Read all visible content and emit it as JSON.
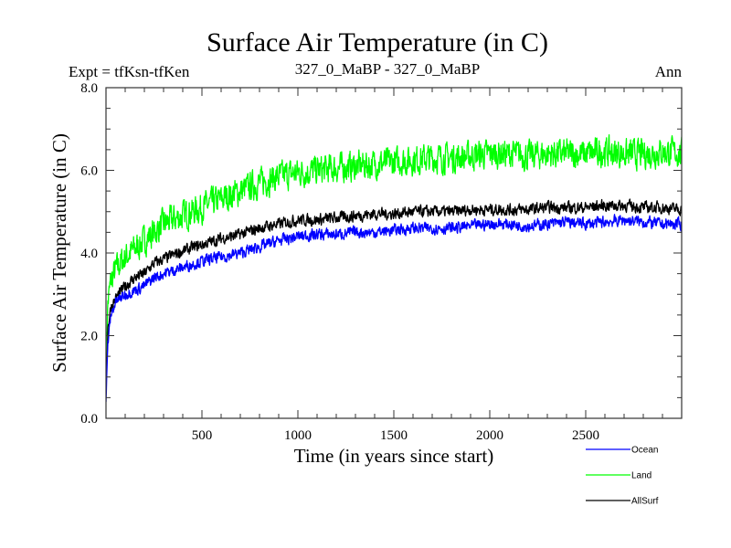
{
  "chart_data": {
    "type": "line",
    "title": "Surface Air Temperature (in C)",
    "subtitle_left": "Expt = tfKsn-tfKen",
    "subtitle_center": "327_0_MaBP - 327_0_MaBP",
    "subtitle_right": "Ann",
    "xlabel": "Time (in years since start)",
    "ylabel": "Surface Air Temperature (in C)",
    "xlim": [
      0,
      3000
    ],
    "ylim": [
      0.0,
      8.0
    ],
    "xticks": [
      500,
      1000,
      1500,
      2000,
      2500
    ],
    "xtick_labels": [
      "500",
      "1000",
      "1500",
      "2000",
      "2500"
    ],
    "yticks": [
      0.0,
      2.0,
      4.0,
      6.0,
      8.0
    ],
    "ytick_labels": [
      "0.0",
      "2.0",
      "4.0",
      "6.0",
      "8.0"
    ],
    "grid": false,
    "legend_position": "bottom-right",
    "x": [
      0,
      10,
      25,
      50,
      100,
      150,
      200,
      250,
      300,
      400,
      500,
      600,
      700,
      800,
      900,
      1000,
      1100,
      1200,
      1300,
      1400,
      1500,
      1600,
      1700,
      1800,
      1900,
      2000,
      2100,
      2200,
      2300,
      2400,
      2500,
      2600,
      2700,
      2800,
      2900,
      3000
    ],
    "series": [
      {
        "name": "Ocean",
        "color": "#0000ff",
        "noise": 0.12,
        "values": [
          0.4,
          1.8,
          2.5,
          2.8,
          3.0,
          3.1,
          3.2,
          3.4,
          3.5,
          3.65,
          3.8,
          3.9,
          4.0,
          4.15,
          4.3,
          4.4,
          4.45,
          4.45,
          4.5,
          4.5,
          4.55,
          4.6,
          4.6,
          4.6,
          4.65,
          4.7,
          4.7,
          4.65,
          4.7,
          4.75,
          4.7,
          4.75,
          4.8,
          4.75,
          4.7,
          4.7
        ]
      },
      {
        "name": "Land",
        "color": "#00ff00",
        "noise": 0.3,
        "values": [
          1.6,
          2.8,
          3.3,
          3.6,
          3.9,
          4.1,
          4.3,
          4.5,
          4.7,
          4.9,
          5.1,
          5.3,
          5.5,
          5.7,
          5.85,
          5.95,
          6.0,
          6.05,
          6.1,
          6.15,
          6.2,
          6.25,
          6.3,
          6.3,
          6.35,
          6.4,
          6.4,
          6.35,
          6.4,
          6.4,
          6.4,
          6.45,
          6.4,
          6.4,
          6.45,
          6.4
        ]
      },
      {
        "name": "AllSurf",
        "color": "#000000",
        "noise": 0.12,
        "values": [
          0.8,
          2.2,
          2.7,
          2.9,
          3.2,
          3.4,
          3.5,
          3.75,
          3.85,
          4.05,
          4.2,
          4.35,
          4.45,
          4.6,
          4.7,
          4.8,
          4.8,
          4.85,
          4.9,
          4.95,
          4.95,
          5.0,
          5.0,
          5.0,
          5.05,
          5.05,
          5.05,
          5.05,
          5.1,
          5.1,
          5.1,
          5.15,
          5.15,
          5.1,
          5.1,
          5.05
        ]
      }
    ]
  }
}
